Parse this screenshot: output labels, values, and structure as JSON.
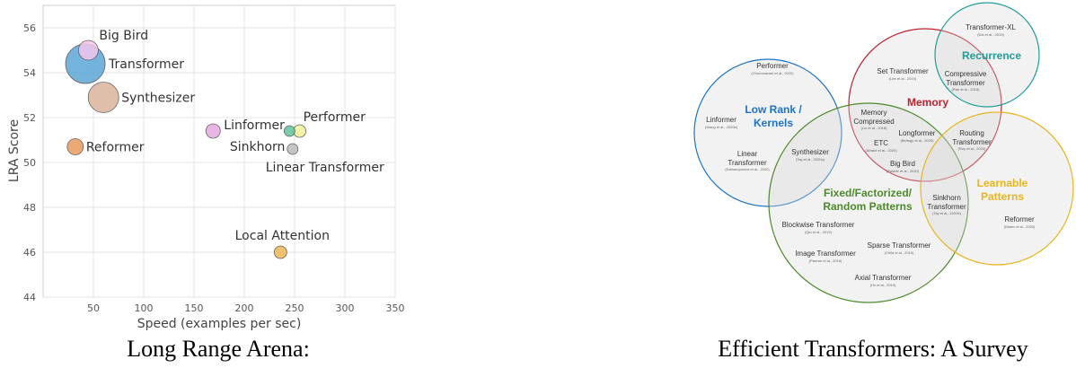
{
  "chart_data": [
    {
      "type": "scatter",
      "title": "",
      "xlabel": "Speed (examples per sec)",
      "ylabel": "LRA Score",
      "xlim": [
        0,
        350
      ],
      "ylim": [
        44,
        57
      ],
      "xticks": [
        50,
        100,
        150,
        200,
        250,
        300,
        350
      ],
      "yticks": [
        44,
        46,
        48,
        50,
        52,
        54,
        56
      ],
      "grid": true,
      "legend": "none",
      "points": [
        {
          "name": "Big Bird",
          "x": 45,
          "y": 55.0,
          "size": 11,
          "color": "#f3c6ec"
        },
        {
          "name": "Transformer",
          "x": 42,
          "y": 54.4,
          "size": 22,
          "color": "#5ba6d6"
        },
        {
          "name": "Synthesizer",
          "x": 60,
          "y": 52.9,
          "size": 17,
          "color": "#d9b49a"
        },
        {
          "name": "Linformer",
          "x": 169,
          "y": 51.4,
          "size": 8,
          "color": "#e4a9e0"
        },
        {
          "name": "Sinkhorn",
          "x": 245,
          "y": 51.4,
          "size": 6,
          "color": "#5fc49a"
        },
        {
          "name": "Performer",
          "x": 255,
          "y": 51.4,
          "size": 7,
          "color": "#f1f09a"
        },
        {
          "name": "Linear Transformer",
          "x": 248,
          "y": 50.6,
          "size": 6,
          "color": "#bbbbbb"
        },
        {
          "name": "Reformer",
          "x": 32,
          "y": 50.7,
          "size": 9,
          "color": "#e89a5e"
        },
        {
          "name": "Local Attention",
          "x": 236,
          "y": 46.0,
          "size": 7,
          "color": "#f0b75a"
        }
      ]
    }
  ],
  "captions": {
    "left": "Long Range Arena:",
    "right": "Efficient Transformers: A Survey"
  },
  "venn": {
    "colors": {
      "low_rank": "#1a73c9",
      "memory": "#c0202e",
      "recurrence": "#1f9e9a",
      "fixed": "#4d8a2c",
      "learnable": "#e8b51e"
    },
    "groups": {
      "low_rank": "Low Rank /",
      "low_rank_2": "Kernels",
      "memory": "Memory",
      "recurrence": "Recurrence",
      "fixed": "Fixed/Factorized/",
      "fixed_2": "Random Patterns",
      "learnable": "Learnable",
      "learnable_2": "Patterns"
    },
    "models": {
      "transformer_xl": "Transformer-XL",
      "transformer_xl_cite": "(Dai et al., 2019)",
      "performer": "Performer",
      "performer_cite": "(Choromanski et al., 2020)",
      "set_transformer": "Set Transformer",
      "set_transformer_cite": "(Lee et al., 2019)",
      "compressive": "Compressive",
      "compressive_2": "Transformer",
      "compressive_cite": "(Rae et al., 2018)",
      "linformer": "Linformer",
      "linformer_cite": "(Wang et al., 2020b)",
      "memory_compressed": "Memory",
      "memory_compressed_2": "Compressed",
      "memory_compressed_cite": "(Liu et al., 2018)",
      "longformer": "Longformer",
      "longformer_cite": "(Beltagy et al., 2020)",
      "etc": "ETC",
      "etc_cite": "(Ainslie et al., 2020)",
      "routing": "Routing",
      "routing_2": "Transformer",
      "routing_cite": "(Roy et al., 2020)",
      "linear_transformer": "Linear",
      "linear_transformer_2": "Transformer",
      "linear_transformer_cite": "(Katharopoulos et al., 2020)",
      "synthesizer": "Synthesizer",
      "synthesizer_cite": "(Tay et al., 2020a)",
      "big_bird": "Big Bird",
      "big_bird_cite": "(Zaheer et al., 2020)",
      "sinkhorn": "Sinkhorn",
      "sinkhorn_2": "Transformer",
      "sinkhorn_cite": "(Tay et al., 2020b)",
      "blockwise": "Blockwise Transformer",
      "blockwise_cite": "(Qiu et al., 2019)",
      "reformer": "Reformer",
      "reformer_cite": "(Kitaev et al., 2020)",
      "image_transformer": "Image Transformer",
      "image_transformer_cite": "(Parmar et al., 2018)",
      "sparse_transformer": "Sparse Transformer",
      "sparse_transformer_cite": "(Child et al., 2019)",
      "axial_transformer": "Axial Transformer",
      "axial_transformer_cite": "(Ho et al., 2019)"
    }
  }
}
